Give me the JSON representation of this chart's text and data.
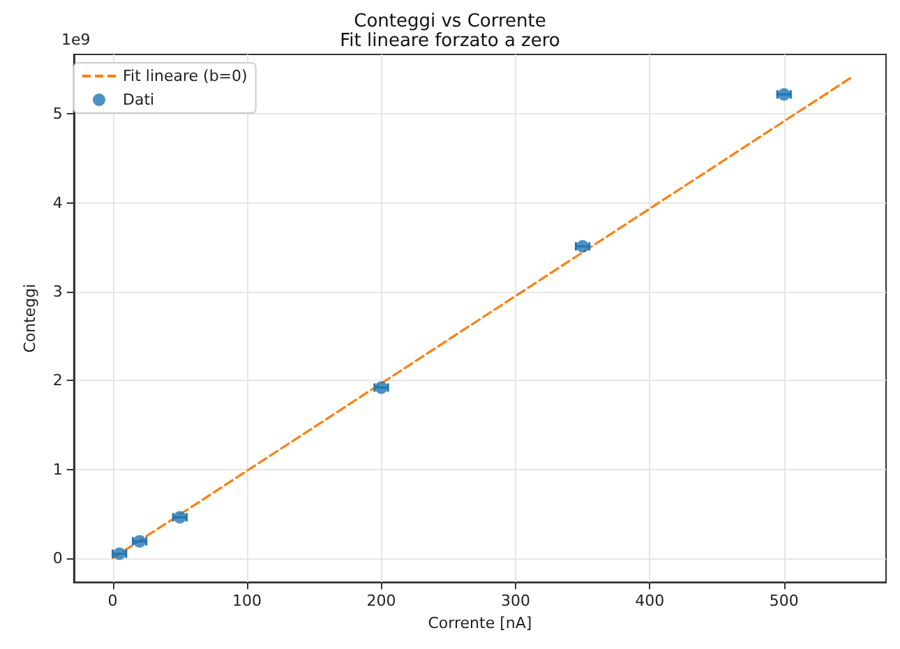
{
  "chart_data": {
    "type": "scatter",
    "title": "Conteggi vs Corrente",
    "subtitle": "Fit lineare forzato a zero",
    "xlabel": "Corrente [nA]",
    "ylabel": "Conteggi",
    "annotations": [
      "1e9"
    ],
    "series": [
      {
        "name": "Dati",
        "color": "#1f77b4",
        "marker": "circle",
        "x": [
          5,
          20,
          50,
          200,
          350,
          500
        ],
        "values": [
          0.05,
          0.19,
          0.46,
          1.92,
          3.51,
          5.22
        ],
        "xerrors": [
          5,
          5,
          5,
          5,
          5,
          5
        ]
      },
      {
        "name": "Fit lineare (b=0)",
        "type": "line",
        "color": "#ff7f0e",
        "line_style": "dashed",
        "marker": "none",
        "x": [
          0,
          550
        ],
        "values": [
          0,
          5.41
        ]
      }
    ],
    "xlim": [
      -29,
      576
    ],
    "xticks": [
      0,
      100,
      200,
      300,
      400,
      500
    ],
    "ylim": [
      -0.27,
      5.67
    ],
    "yticks": [
      0,
      1,
      2,
      3,
      4,
      5
    ],
    "grid": true,
    "legend": "top left"
  }
}
